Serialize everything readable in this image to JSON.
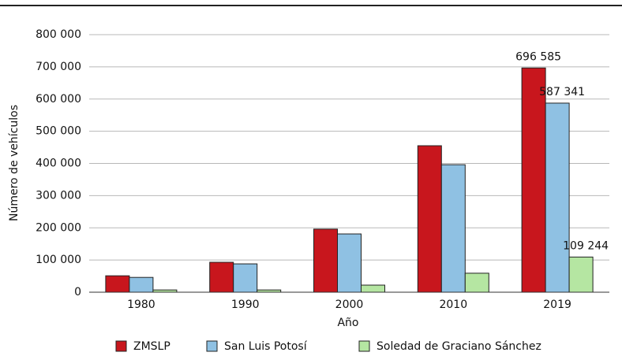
{
  "chart_data": {
    "type": "bar",
    "y_label": "Número de vehículos",
    "x_label": "Año",
    "categories": [
      "1980",
      "1990",
      "2000",
      "2010",
      "2019"
    ],
    "series": [
      {
        "name": "ZMSLP",
        "color": "#c8161d",
        "values": [
          51000,
          93000,
          196000,
          455000,
          696585
        ],
        "value_labels": [
          null,
          null,
          null,
          null,
          "696 585"
        ]
      },
      {
        "name": "San Luis Potosí",
        "color": "#8fc1e3",
        "values": [
          46000,
          88000,
          181000,
          396000,
          587341
        ],
        "value_labels": [
          null,
          null,
          null,
          null,
          "587 341"
        ]
      },
      {
        "name": "Soledad de Graciano Sánchez",
        "color": "#b5e6a2",
        "values": [
          7000,
          7000,
          22000,
          59000,
          109244
        ],
        "value_labels": [
          null,
          null,
          null,
          null,
          "109 244"
        ]
      }
    ],
    "ylim": [
      0,
      800000
    ],
    "yticks": [
      0,
      {
        "value": 100000,
        "label": "100 000"
      },
      {
        "value": 200000,
        "label": "200 000"
      },
      {
        "value": 300000,
        "label": "300 000"
      },
      {
        "value": 400000,
        "label": "400 000"
      },
      {
        "value": 500000,
        "label": "500 000"
      },
      {
        "value": 600000,
        "label": "600 000"
      },
      {
        "value": 700000,
        "label": "700 000"
      },
      {
        "value": 800000,
        "label": "800 000"
      }
    ],
    "grid": true
  }
}
